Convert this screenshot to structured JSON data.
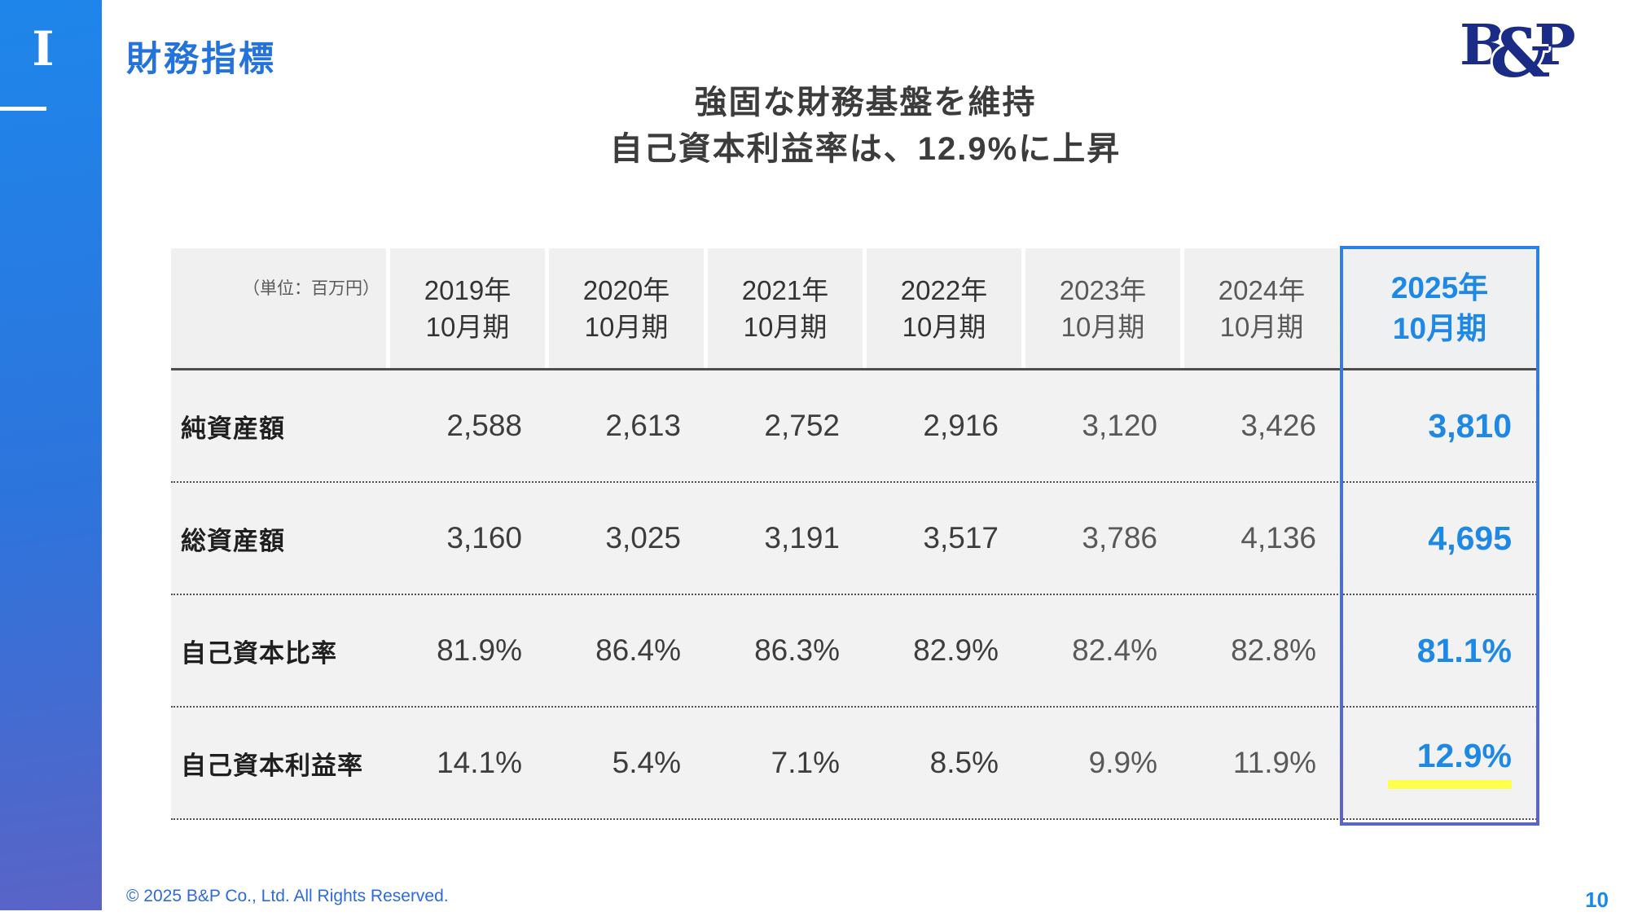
{
  "sidebar": {
    "section_marker": "I"
  },
  "header": {
    "title": "財務指標",
    "heading_line1": "強固な財務基盤を維持",
    "heading_line2": "自己資本利益率は、12.9%に上昇",
    "logo": {
      "b": "B",
      "amp": "&",
      "p": "P"
    }
  },
  "table": {
    "unit_label": "（単位：百万円）",
    "columns": [
      {
        "year": "2019年",
        "period": "10月期"
      },
      {
        "year": "2020年",
        "period": "10月期"
      },
      {
        "year": "2021年",
        "period": "10月期"
      },
      {
        "year": "2022年",
        "period": "10月期"
      },
      {
        "year": "2023年",
        "period": "10月期"
      },
      {
        "year": "2024年",
        "period": "10月期"
      },
      {
        "year": "2025年",
        "period": "10月期"
      }
    ],
    "rows": [
      {
        "label": "純資産額",
        "values": [
          "2,588",
          "2,613",
          "2,752",
          "2,916",
          "3,120",
          "3,426"
        ],
        "current": "3,810"
      },
      {
        "label": "総資産額",
        "values": [
          "3,160",
          "3,025",
          "3,191",
          "3,517",
          "3,786",
          "4,136"
        ],
        "current": "4,695"
      },
      {
        "label": "自己資本比率",
        "values": [
          "81.9%",
          "86.4%",
          "86.3%",
          "82.9%",
          "82.4%",
          "82.8%"
        ],
        "current": "81.1%"
      },
      {
        "label": "自己資本利益率",
        "values": [
          "14.1%",
          "5.4%",
          "7.1%",
          "8.5%",
          "9.9%",
          "11.9%"
        ],
        "current": "12.9%"
      }
    ]
  },
  "footer": {
    "copyright": "© 2025 B&P Co., Ltd. All Rights Reserved.",
    "page_number": "10"
  },
  "colors": {
    "accent_blue": "#1e88e5",
    "title_blue": "#2373db",
    "sidebar_gradient_top": "#1e86ea",
    "sidebar_gradient_bottom": "#5a63c6",
    "logo_navy": "#1b2c87",
    "footer_blue": "#2e6bd9",
    "highlight_yellow": "#ffff4d",
    "muted_text": "#595959",
    "dark_text": "#3d3d3d",
    "cell_gray": "#f1f1f2"
  },
  "chart_data": {
    "type": "table",
    "title": "財務指標",
    "columns": [
      "2019年10月期",
      "2020年10月期",
      "2021年10月期",
      "2022年10月期",
      "2023年10月期",
      "2024年10月期",
      "2025年10月期"
    ],
    "rows": [
      {
        "label": "純資産額",
        "unit": "百万円",
        "values": [
          2588,
          2613,
          2752,
          2916,
          3120,
          3426,
          3810
        ]
      },
      {
        "label": "総資産額",
        "unit": "百万円",
        "values": [
          3160,
          3025,
          3191,
          3517,
          3786,
          4136,
          4695
        ]
      },
      {
        "label": "自己資本比率",
        "unit": "%",
        "values": [
          81.9,
          86.4,
          86.3,
          82.9,
          82.4,
          82.8,
          81.1
        ]
      },
      {
        "label": "自己資本利益率",
        "unit": "%",
        "values": [
          14.1,
          5.4,
          7.1,
          8.5,
          9.9,
          11.9,
          12.9
        ]
      }
    ],
    "highlight_column": "2025年10月期"
  }
}
